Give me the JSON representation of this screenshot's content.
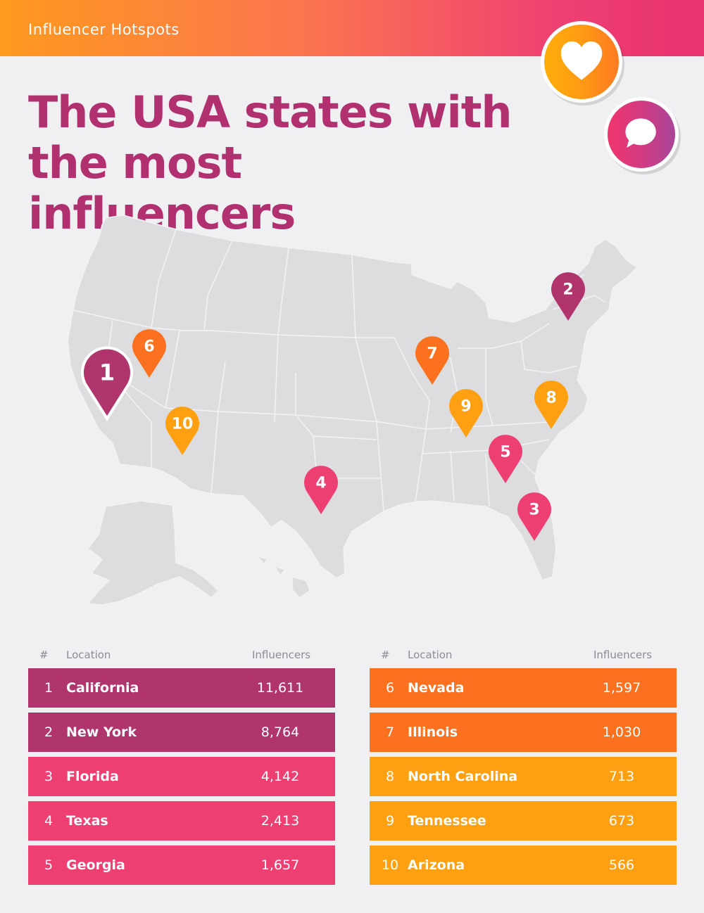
{
  "header": {
    "title": "Influencer Hotspots"
  },
  "headline": {
    "line1": "The USA states with",
    "line2": "the most influencers"
  },
  "icons": {
    "badge1": "heart-icon",
    "badge2": "speech-bubble-icon"
  },
  "colors": {
    "plum": "#b0356d",
    "pink": "#ee3f72",
    "orange": "#fb7120",
    "amber": "#ffa012",
    "map_fill": "#dddde0",
    "title": "#b03070"
  },
  "table_headers": {
    "rank": "#",
    "location": "Location",
    "influencers": "Influencers"
  },
  "rankings": [
    {
      "rank": "1",
      "location": "California",
      "influencers": "11,611",
      "color": "#b0356d"
    },
    {
      "rank": "2",
      "location": "New York",
      "influencers": "8,764",
      "color": "#b0356d"
    },
    {
      "rank": "3",
      "location": "Florida",
      "influencers": "4,142",
      "color": "#ee3f72"
    },
    {
      "rank": "4",
      "location": "Texas",
      "influencers": "2,413",
      "color": "#ee3f72"
    },
    {
      "rank": "5",
      "location": "Georgia",
      "influencers": "1,657",
      "color": "#ee3f72"
    },
    {
      "rank": "6",
      "location": "Nevada",
      "influencers": "1,597",
      "color": "#fb7120"
    },
    {
      "rank": "7",
      "location": "Illinois",
      "influencers": "1,030",
      "color": "#fb7120"
    },
    {
      "rank": "8",
      "location": "North Carolina",
      "influencers": "713",
      "color": "#ffa012"
    },
    {
      "rank": "9",
      "location": "Tennessee",
      "influencers": "673",
      "color": "#ffa012"
    },
    {
      "rank": "10",
      "location": "Arizona",
      "influencers": "566",
      "color": "#ffa012"
    }
  ]
}
